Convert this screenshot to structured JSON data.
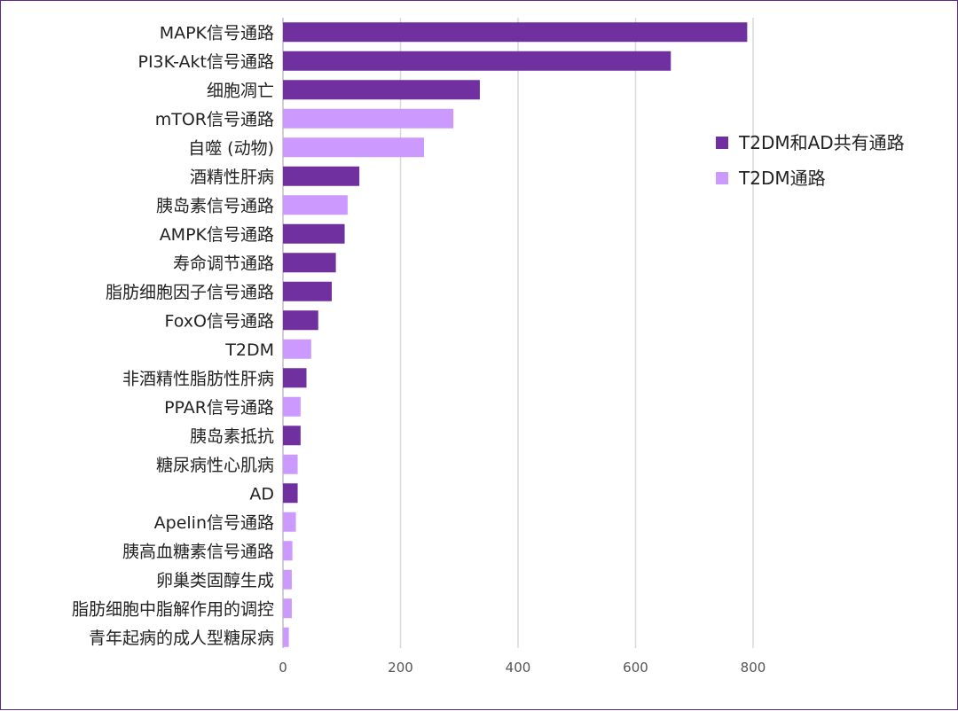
{
  "chart_data": {
    "type": "bar",
    "orientation": "horizontal",
    "title": "",
    "xlabel": "",
    "ylabel": "",
    "xlim": [
      0,
      1000
    ],
    "xticks": [
      0,
      200,
      400,
      600,
      800
    ],
    "grid": true,
    "legend_position": "right",
    "series": [
      {
        "name": "T2DM和AD共有通路",
        "color": "#7030a0"
      },
      {
        "name": "T2DM通路",
        "color": "#cc99ff"
      }
    ],
    "categories": [
      "MAPK信号通路",
      "PI3K-Akt信号通路",
      "细胞凋亡",
      "mTOR信号通路",
      "自噬 (动物)",
      "酒精性肝病",
      "胰岛素信号通路",
      "AMPK信号通路",
      "寿命调节通路",
      "脂肪细胞因子信号通路",
      "FoxO信号通路",
      "T2DM",
      "非酒精性脂肪性肝病",
      "PPAR信号通路",
      "胰岛素抵抗",
      "糖尿病性心肌病",
      "AD",
      "Apelin信号通路",
      "胰高血糖素信号通路",
      "卵巢类固醇生成",
      "脂肪细胞中脂解作用的调控",
      "青年起病的成人型糖尿病"
    ],
    "values": [
      790,
      660,
      335,
      290,
      240,
      130,
      110,
      105,
      90,
      83,
      60,
      48,
      40,
      30,
      30,
      25,
      25,
      22,
      16,
      15,
      15,
      10
    ],
    "series_index": [
      0,
      0,
      0,
      1,
      1,
      0,
      1,
      0,
      0,
      0,
      0,
      1,
      0,
      1,
      0,
      1,
      0,
      1,
      1,
      1,
      1,
      1
    ]
  }
}
